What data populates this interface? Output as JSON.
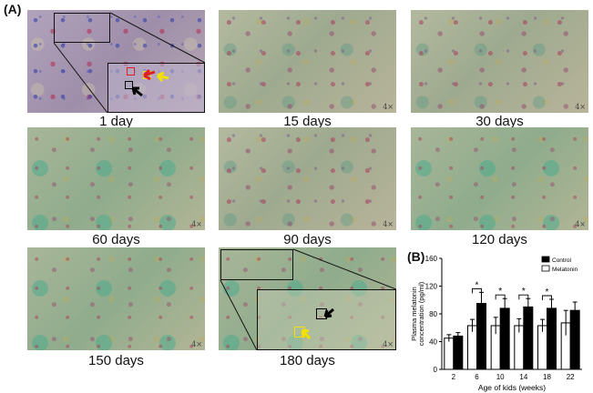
{
  "panels": {
    "a_label": "(A)",
    "b_label": "(B)"
  },
  "micrographs": [
    {
      "caption": "1 day",
      "scale": ""
    },
    {
      "caption": "15 days",
      "scale": "4×"
    },
    {
      "caption": "30 days",
      "scale": "4×"
    },
    {
      "caption": "60 days",
      "scale": "4×"
    },
    {
      "caption": "90 days",
      "scale": "4×"
    },
    {
      "caption": "120 days",
      "scale": "4×"
    },
    {
      "caption": "150 days",
      "scale": "4×"
    },
    {
      "caption": "180 days",
      "scale": "4×"
    }
  ],
  "arrow_colors": {
    "red": "#e02020",
    "yellow": "#f2e100",
    "black": "#000000"
  },
  "chart_data": {
    "type": "bar",
    "xlabel": "Age of kids (weeks)",
    "ylabel": "Plasma melatonin concentration (pg/ml)",
    "categories": [
      "2",
      "6",
      "10",
      "14",
      "18",
      "22"
    ],
    "ylim": [
      0,
      160
    ],
    "yticks": [
      "0",
      "40",
      "80",
      "120",
      "160"
    ],
    "series": [
      {
        "name": "Control",
        "color": "#000000",
        "values": [
          48,
          95,
          88,
          90,
          88,
          85
        ],
        "errors": [
          5,
          16,
          14,
          12,
          13,
          12
        ]
      },
      {
        "name": "Melatonin",
        "color": "#ffffff",
        "values": [
          45,
          63,
          63,
          63,
          63,
          67
        ],
        "errors": [
          5,
          9,
          12,
          10,
          9,
          18
        ]
      }
    ],
    "significance": [
      "",
      "*",
      "*",
      "*",
      "*",
      ""
    ],
    "legend_position": "top-right"
  }
}
